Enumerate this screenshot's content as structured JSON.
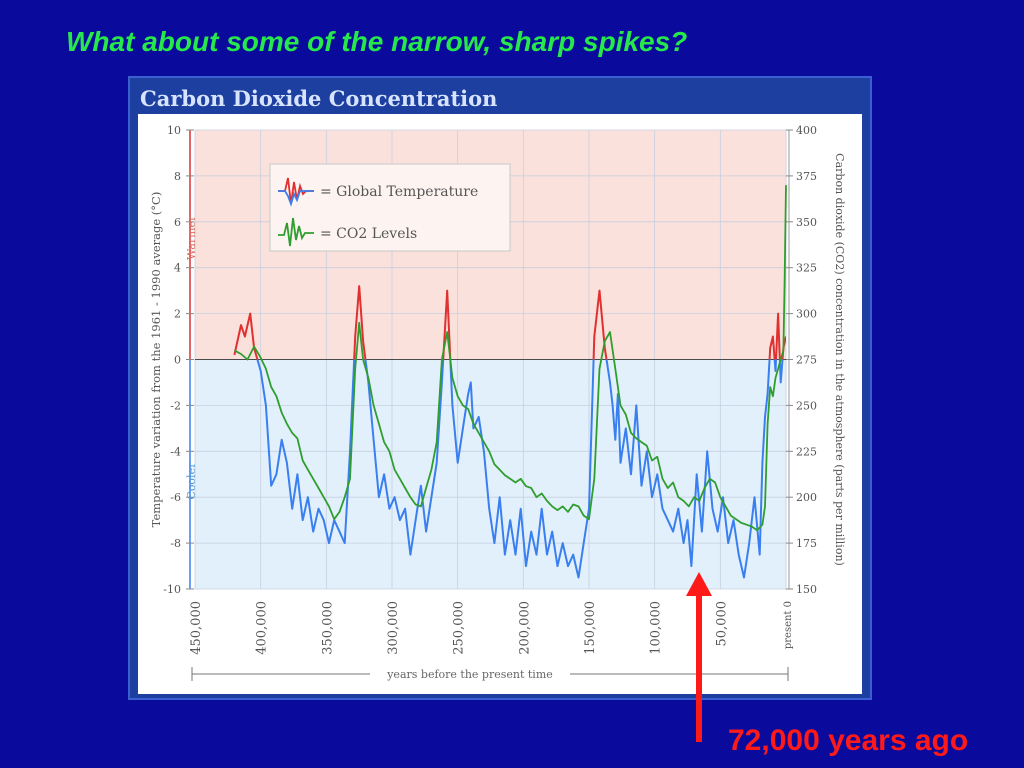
{
  "slide": {
    "title": "What about some of the narrow, sharp spikes?",
    "annotation": "72,000 years ago",
    "background_color": "#0a0a9c",
    "title_color": "#27e84a",
    "annotation_color": "#ff1a1a"
  },
  "chart_data": {
    "type": "line",
    "title": "Carbon Dioxide Concentration",
    "xlabel": "years before the present time",
    "ylabel_left": "Temperature variation from the 1961 - 1990 average (°C)",
    "ylabel_right": "Carbon dioxide (CO2) concentration in the atmosphere (parts per million)",
    "band_labels": {
      "warmer": "Warmer",
      "cooler": "Cooler"
    },
    "xlim": [
      450000,
      0
    ],
    "ylim_left": [
      -10,
      10
    ],
    "ylim_right": [
      150,
      400
    ],
    "x_ticks": [
      "450,000",
      "400,000",
      "350,000",
      "300,000",
      "250,000",
      "200,000",
      "150,000",
      "100,000",
      "50,000",
      "present 0"
    ],
    "y_ticks_left": [
      "10",
      "8",
      "6",
      "4",
      "2",
      "0",
      "-2",
      "-4",
      "-6",
      "-8",
      "-10"
    ],
    "y_ticks_right": [
      "400",
      "375",
      "350",
      "325",
      "300",
      "275",
      "250",
      "225",
      "200",
      "175",
      "150"
    ],
    "legend": {
      "placement": "top-left",
      "entries": [
        "= Global Temperature",
        "= CO2 Levels"
      ]
    },
    "colors": {
      "temperature_warm": "#e03030",
      "temperature_cool": "#3a7ff0",
      "co2": "#2f9e2f",
      "warm_band": "#fbe1dc",
      "cool_band": "#e2f0fb"
    },
    "annotation_marker_x": 72000,
    "series": [
      {
        "name": "Global Temperature",
        "axis": "left",
        "x": [
          420000,
          415000,
          412000,
          408000,
          405000,
          400000,
          396000,
          392000,
          388000,
          384000,
          380000,
          376000,
          372000,
          368000,
          364000,
          360000,
          356000,
          352000,
          348000,
          344000,
          340000,
          336000,
          332000,
          328000,
          325000,
          322000,
          318000,
          314000,
          310000,
          306000,
          302000,
          298000,
          294000,
          290000,
          286000,
          282000,
          278000,
          274000,
          270000,
          266000,
          262000,
          258000,
          254000,
          250000,
          246000,
          242000,
          240000,
          238000,
          234000,
          230000,
          226000,
          222000,
          218000,
          214000,
          210000,
          206000,
          202000,
          198000,
          194000,
          190000,
          186000,
          182000,
          178000,
          174000,
          170000,
          166000,
          162000,
          158000,
          154000,
          150000,
          146000,
          142000,
          138000,
          134000,
          132000,
          130000,
          128000,
          126000,
          122000,
          118000,
          114000,
          110000,
          106000,
          102000,
          98000,
          94000,
          90000,
          86000,
          82000,
          78000,
          75000,
          72000,
          68000,
          64000,
          60000,
          56000,
          52000,
          48000,
          44000,
          40000,
          36000,
          32000,
          28000,
          24000,
          20000,
          18000,
          16000,
          14000,
          12000,
          10000,
          8000,
          6000,
          4000,
          2000,
          0
        ],
        "values": [
          0.2,
          1.5,
          1.0,
          2.0,
          0.5,
          -0.5,
          -2.0,
          -5.5,
          -5.0,
          -3.5,
          -4.5,
          -6.5,
          -5.0,
          -7.0,
          -6.0,
          -7.5,
          -6.5,
          -7.0,
          -8.0,
          -7.0,
          -7.5,
          -8.0,
          -4.0,
          1.0,
          3.2,
          0.8,
          -1.0,
          -3.5,
          -6.0,
          -5.0,
          -6.5,
          -6.0,
          -7.0,
          -6.5,
          -8.5,
          -7.0,
          -5.5,
          -7.5,
          -6.0,
          -4.5,
          -1.0,
          3.0,
          -2.0,
          -4.5,
          -3.0,
          -1.5,
          -1.0,
          -3.0,
          -2.5,
          -4.0,
          -6.5,
          -8.0,
          -6.0,
          -8.5,
          -7.0,
          -8.5,
          -6.5,
          -9.0,
          -7.5,
          -8.5,
          -6.5,
          -8.5,
          -7.5,
          -9.0,
          -8.0,
          -9.0,
          -8.5,
          -9.5,
          -8.0,
          -6.5,
          1.0,
          3.0,
          0.5,
          -1.0,
          -2.0,
          -3.5,
          -1.5,
          -4.5,
          -3.0,
          -5.0,
          -2.0,
          -5.5,
          -4.0,
          -6.0,
          -5.0,
          -6.5,
          -7.0,
          -7.5,
          -6.5,
          -8.0,
          -7.0,
          -9.0,
          -5.0,
          -7.5,
          -4.0,
          -6.5,
          -7.5,
          -6.0,
          -8.0,
          -7.0,
          -8.5,
          -9.5,
          -8.0,
          -6.0,
          -8.5,
          -4.5,
          -2.5,
          -1.5,
          0.5,
          1.0,
          -0.5,
          2.0,
          -1.0,
          0.5,
          1.0
        ]
      },
      {
        "name": "CO2 Levels",
        "axis": "right",
        "x": [
          420000,
          415000,
          410000,
          405000,
          400000,
          396000,
          392000,
          388000,
          384000,
          380000,
          376000,
          372000,
          368000,
          364000,
          360000,
          356000,
          352000,
          348000,
          344000,
          340000,
          336000,
          332000,
          328000,
          325000,
          322000,
          318000,
          314000,
          310000,
          306000,
          302000,
          298000,
          294000,
          290000,
          286000,
          282000,
          278000,
          274000,
          270000,
          266000,
          262000,
          258000,
          254000,
          250000,
          246000,
          242000,
          238000,
          234000,
          230000,
          226000,
          222000,
          218000,
          214000,
          210000,
          206000,
          202000,
          198000,
          194000,
          190000,
          186000,
          182000,
          178000,
          174000,
          170000,
          166000,
          162000,
          158000,
          154000,
          150000,
          146000,
          142000,
          138000,
          134000,
          130000,
          126000,
          122000,
          118000,
          114000,
          110000,
          106000,
          102000,
          98000,
          94000,
          90000,
          86000,
          82000,
          78000,
          74000,
          70000,
          66000,
          62000,
          58000,
          54000,
          50000,
          46000,
          42000,
          38000,
          34000,
          30000,
          26000,
          22000,
          18000,
          16000,
          14000,
          12000,
          10000,
          8000,
          6000,
          4000,
          2000,
          1000,
          0
        ],
        "values": [
          280,
          278,
          275,
          282,
          276,
          270,
          260,
          255,
          246,
          240,
          235,
          232,
          220,
          215,
          210,
          205,
          200,
          195,
          188,
          192,
          200,
          210,
          270,
          295,
          275,
          265,
          250,
          240,
          230,
          225,
          215,
          210,
          205,
          200,
          196,
          195,
          205,
          215,
          230,
          275,
          290,
          265,
          255,
          250,
          248,
          240,
          235,
          230,
          225,
          218,
          215,
          212,
          210,
          208,
          210,
          206,
          205,
          200,
          202,
          198,
          195,
          193,
          195,
          192,
          196,
          195,
          190,
          188,
          210,
          270,
          285,
          290,
          270,
          250,
          245,
          235,
          232,
          230,
          228,
          220,
          222,
          210,
          205,
          208,
          200,
          198,
          195,
          200,
          198,
          205,
          210,
          208,
          200,
          195,
          190,
          188,
          186,
          185,
          184,
          182,
          185,
          195,
          240,
          260,
          255,
          265,
          270,
          275,
          280,
          320,
          370
        ]
      }
    ]
  }
}
